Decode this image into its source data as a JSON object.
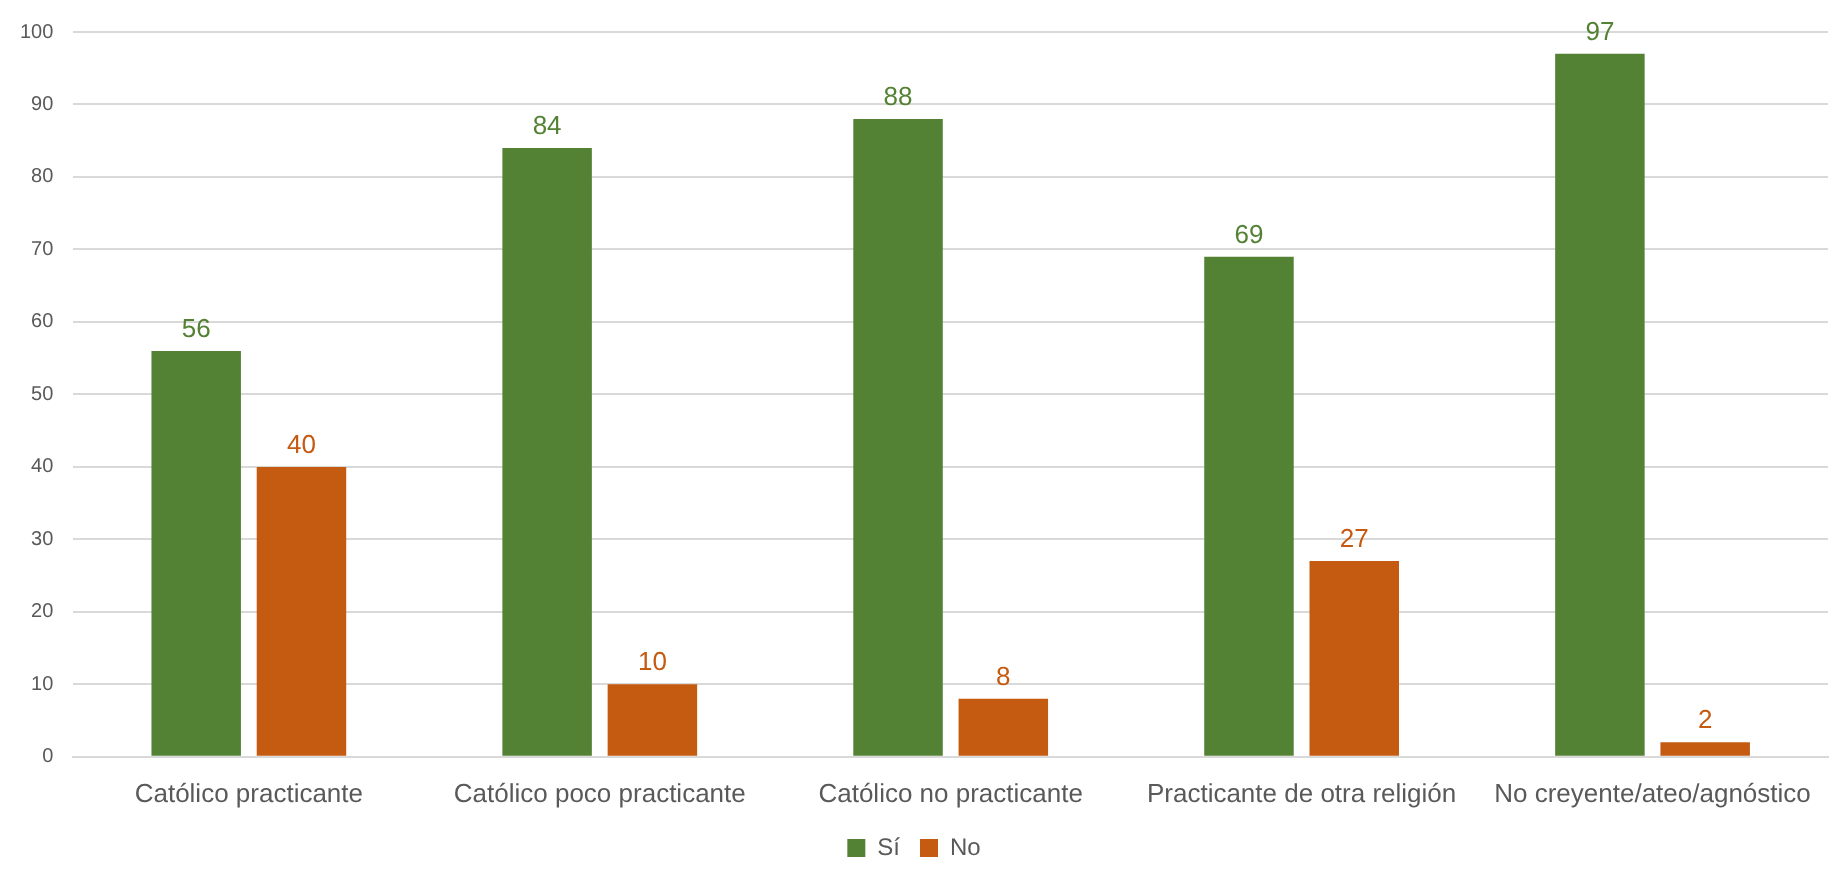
{
  "chart_data": {
    "type": "bar",
    "categories": [
      "Católico practicante",
      "Católico poco practicante",
      "Católico no practicante",
      "Practicante de otra religión",
      "No creyente/ateo/agnóstico"
    ],
    "series": [
      {
        "name": "Sí",
        "color": "#548235",
        "values": [
          56,
          84,
          88,
          69,
          97
        ]
      },
      {
        "name": "No",
        "color": "#c55a11",
        "values": [
          40,
          10,
          8,
          27,
          2
        ]
      }
    ],
    "ylim": [
      0,
      100
    ],
    "yticks": [
      0,
      10,
      20,
      30,
      40,
      50,
      60,
      70,
      80,
      90,
      100
    ],
    "grid": "y",
    "legend": "bottom",
    "data_labels": true
  }
}
